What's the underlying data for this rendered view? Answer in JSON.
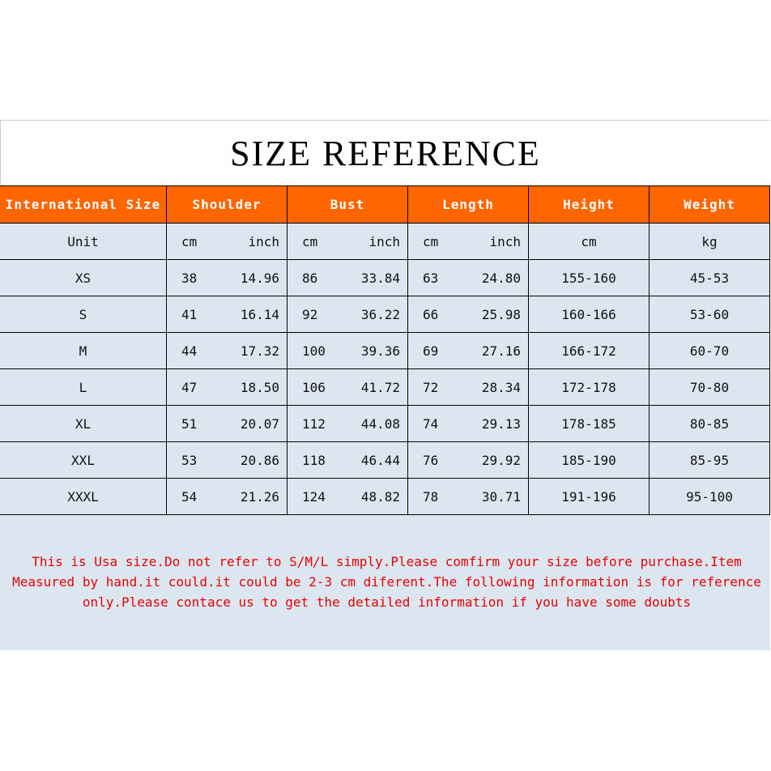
{
  "title": "SIZE REFERENCE",
  "colors": {
    "header_bg": "#ff6600",
    "body_bg": "#dce6f1",
    "note_text": "#e60000"
  },
  "headers": [
    "International Size",
    "Shoulder",
    "Bust",
    "Length",
    "Height",
    "Weight"
  ],
  "unit_row": {
    "label": "Unit",
    "shoulder": [
      "cm",
      "inch"
    ],
    "bust": [
      "cm",
      "inch"
    ],
    "length": [
      "cm",
      "inch"
    ],
    "height": "cm",
    "weight": "kg"
  },
  "rows": [
    {
      "size": "XS",
      "shoulder": [
        "38",
        "14.96"
      ],
      "bust": [
        "86",
        "33.84"
      ],
      "length": [
        "63",
        "24.80"
      ],
      "height": "155-160",
      "weight": "45-53"
    },
    {
      "size": "S",
      "shoulder": [
        "41",
        "16.14"
      ],
      "bust": [
        "92",
        "36.22"
      ],
      "length": [
        "66",
        "25.98"
      ],
      "height": "160-166",
      "weight": "53-60"
    },
    {
      "size": "M",
      "shoulder": [
        "44",
        "17.32"
      ],
      "bust": [
        "100",
        "39.36"
      ],
      "length": [
        "69",
        "27.16"
      ],
      "height": "166-172",
      "weight": "60-70"
    },
    {
      "size": "L",
      "shoulder": [
        "47",
        "18.50"
      ],
      "bust": [
        "106",
        "41.72"
      ],
      "length": [
        "72",
        "28.34"
      ],
      "height": "172-178",
      "weight": "70-80"
    },
    {
      "size": "XL",
      "shoulder": [
        "51",
        "20.07"
      ],
      "bust": [
        "112",
        "44.08"
      ],
      "length": [
        "74",
        "29.13"
      ],
      "height": "178-185",
      "weight": "80-85"
    },
    {
      "size": "XXL",
      "shoulder": [
        "53",
        "20.86"
      ],
      "bust": [
        "118",
        "46.44"
      ],
      "length": [
        "76",
        "29.92"
      ],
      "height": "185-190",
      "weight": "85-95"
    },
    {
      "size": "XXXL",
      "shoulder": [
        "54",
        "21.26"
      ],
      "bust": [
        "124",
        "48.82"
      ],
      "length": [
        "78",
        "30.71"
      ],
      "height": "191-196",
      "weight": "95-100"
    }
  ],
  "note": "This is Usa size.Do not refer to S/M/L simply.Please comfirm your size before purchase.Item Measured by hand.it could.it could be 2-3 cm diferent.The following information is for reference only.Please contace us to get the detailed information if you have some doubts"
}
